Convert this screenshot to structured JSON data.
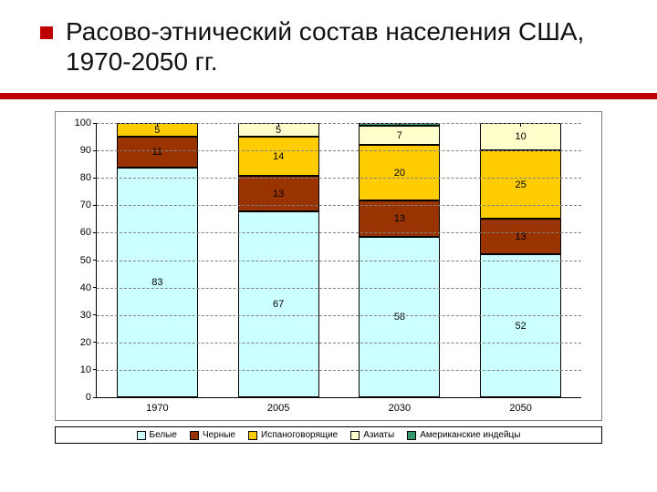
{
  "title": "Расово-этнический состав населения США, 1970-2050 гг.",
  "accent_color": "#c00000",
  "chart": {
    "type": "stacked-bar",
    "background_color": "#ffffff",
    "border_color": "#808080",
    "grid_color": "#808080",
    "axis_color": "#000000",
    "ylim": [
      0,
      100
    ],
    "ytick_step": 10,
    "label_fontsize": 11,
    "bar_width_ratio": 0.67,
    "categories": [
      "1970",
      "2005",
      "2030",
      "2050"
    ],
    "series": [
      {
        "name": "Белые",
        "color": "#ccffff"
      },
      {
        "name": "Черные",
        "color": "#993300"
      },
      {
        "name": "Испаноговорящие",
        "color": "#ffcc00"
      },
      {
        "name": "Азиаты",
        "color": "#ffffcc"
      },
      {
        "name": "Американские индейцы",
        "color": "#339966"
      }
    ],
    "data": [
      {
        "values": [
          83,
          11,
          5,
          0,
          0
        ],
        "labels": [
          "83",
          "11",
          "5",
          "",
          ""
        ]
      },
      {
        "values": [
          67,
          13,
          14,
          5,
          0
        ],
        "labels": [
          "67",
          "13",
          "14",
          "5",
          ""
        ]
      },
      {
        "values": [
          58,
          13,
          20,
          7,
          1
        ],
        "labels": [
          "58",
          "13",
          "20",
          "7",
          ""
        ]
      },
      {
        "values": [
          52,
          13,
          25,
          10,
          0
        ],
        "labels": [
          "52",
          "13",
          "25",
          "10",
          ""
        ]
      }
    ]
  }
}
